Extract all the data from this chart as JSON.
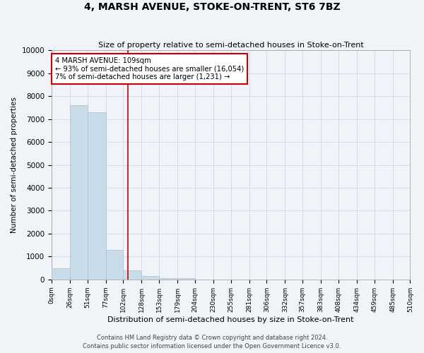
{
  "title": "4, MARSH AVENUE, STOKE-ON-TRENT, ST6 7BZ",
  "subtitle": "Size of property relative to semi-detached houses in Stoke-on-Trent",
  "xlabel": "Distribution of semi-detached houses by size in Stoke-on-Trent",
  "ylabel": "Number of semi-detached properties",
  "footnote1": "Contains HM Land Registry data © Crown copyright and database right 2024.",
  "footnote2": "Contains public sector information licensed under the Open Government Licence v3.0.",
  "bin_labels": [
    "0sqm",
    "26sqm",
    "51sqm",
    "77sqm",
    "102sqm",
    "128sqm",
    "153sqm",
    "179sqm",
    "204sqm",
    "230sqm",
    "255sqm",
    "281sqm",
    "306sqm",
    "332sqm",
    "357sqm",
    "383sqm",
    "408sqm",
    "434sqm",
    "459sqm",
    "485sqm",
    "510sqm"
  ],
  "bin_edges": [
    0,
    26,
    51,
    77,
    102,
    128,
    153,
    179,
    204,
    230,
    255,
    281,
    306,
    332,
    357,
    383,
    408,
    434,
    459,
    485,
    510
  ],
  "bar_values": [
    500,
    7600,
    7300,
    1300,
    400,
    150,
    50,
    50,
    0,
    0,
    0,
    0,
    0,
    0,
    0,
    0,
    0,
    0,
    0,
    0
  ],
  "bar_color": "#c9dcea",
  "bar_edge_color": "#afc5d8",
  "property_size": 109,
  "marker_line_color": "#cc0000",
  "annotation_line1": "4 MARSH AVENUE: 109sqm",
  "annotation_line2": "← 93% of semi-detached houses are smaller (16,054)",
  "annotation_line3": "7% of semi-detached houses are larger (1,231) →",
  "annotation_box_color": "#ffffff",
  "annotation_border_color": "#cc0000",
  "ylim": [
    0,
    10000
  ],
  "yticks": [
    0,
    1000,
    2000,
    3000,
    4000,
    5000,
    6000,
    7000,
    8000,
    9000,
    10000
  ],
  "background_color": "#f0f4f8",
  "grid_color": "#c8d4e0"
}
